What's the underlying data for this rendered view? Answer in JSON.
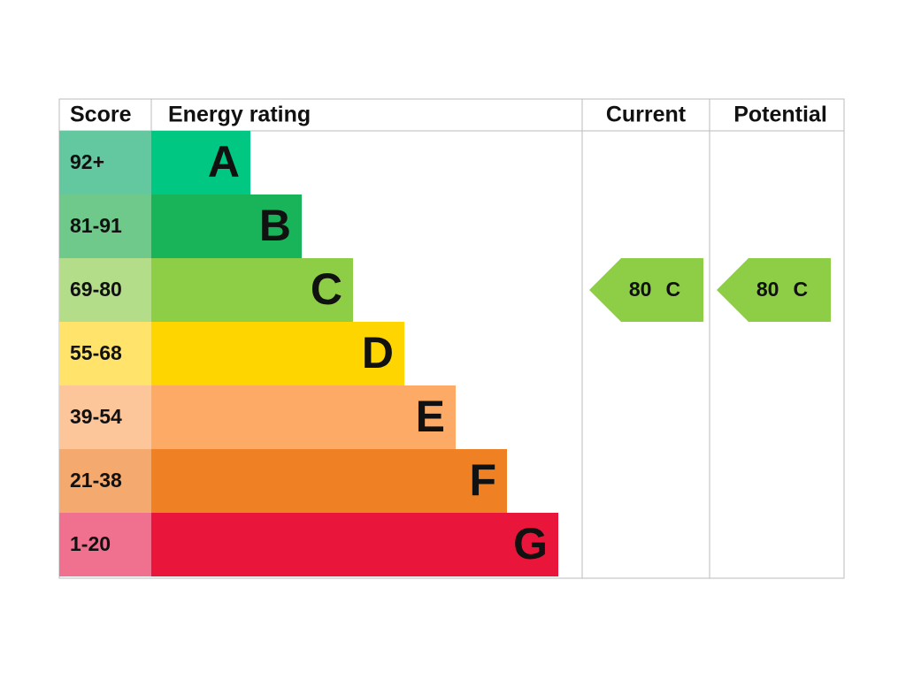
{
  "header": {
    "score": "Score",
    "rating": "Energy rating",
    "current": "Current",
    "potential": "Potential"
  },
  "bands": [
    {
      "range": "92+",
      "letter": "A",
      "color": "#00c781",
      "range_color": "#63c8a0"
    },
    {
      "range": "81-91",
      "letter": "B",
      "color": "#19b459",
      "range_color": "#6fc98a"
    },
    {
      "range": "69-80",
      "letter": "C",
      "color": "#8dce46",
      "range_color": "#b3dd89"
    },
    {
      "range": "55-68",
      "letter": "D",
      "color": "#ffd500",
      "range_color": "#ffe36a"
    },
    {
      "range": "39-54",
      "letter": "E",
      "color": "#fcaa65",
      "range_color": "#fdc59a"
    },
    {
      "range": "21-38",
      "letter": "F",
      "color": "#ef8023",
      "range_color": "#f4aa6e"
    },
    {
      "range": "1-20",
      "letter": "G",
      "color": "#e9153b",
      "range_color": "#f07090"
    }
  ],
  "current": {
    "score": 80,
    "band": "C"
  },
  "potential": {
    "score": 80,
    "band": "C"
  }
}
